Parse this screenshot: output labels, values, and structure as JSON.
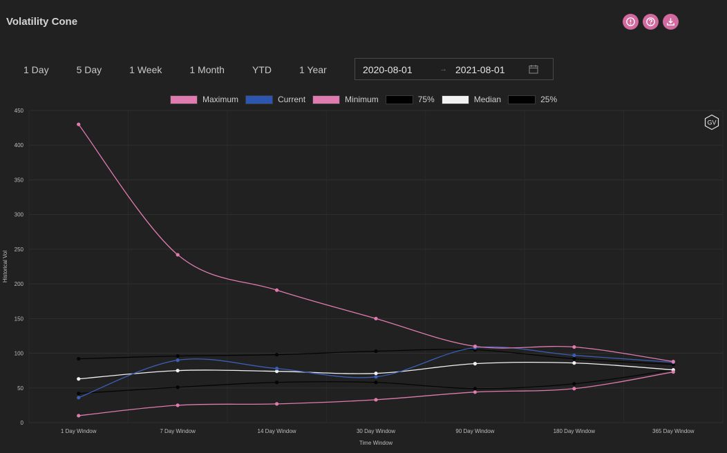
{
  "header": {
    "title": "Volatility Cone",
    "icons": [
      "info-icon",
      "help-icon",
      "download-icon"
    ],
    "accent_color": "#d26a9f"
  },
  "ranges": [
    {
      "label": "1 Day"
    },
    {
      "label": "5 Day"
    },
    {
      "label": "1 Week"
    },
    {
      "label": "1 Month"
    },
    {
      "label": "YTD"
    },
    {
      "label": "1 Year"
    }
  ],
  "date_range": {
    "start": "2020-08-01",
    "separator": "→",
    "end": "2021-08-01"
  },
  "badge": "GV",
  "chart_data": {
    "type": "line",
    "title": "",
    "xlabel": "Time Window",
    "ylabel": "Historical Vol",
    "ylim": [
      0,
      450
    ],
    "yticks": [
      0,
      50,
      100,
      150,
      200,
      250,
      300,
      350,
      400,
      450
    ],
    "grid": true,
    "legend_position": "top",
    "categories": [
      "1 Day Window",
      "7 Day Window",
      "14 Day Window",
      "30 Day Window",
      "90 Day Window",
      "180 Day Window",
      "365 Day Window"
    ],
    "series": [
      {
        "name": "Maximum",
        "color": "#e07bb0",
        "swatch": "#e07bb0",
        "values": [
          430,
          242,
          191,
          150,
          110,
          109,
          88
        ]
      },
      {
        "name": "Current",
        "color": "#3b5fb5",
        "swatch": "#2d56b0",
        "values": [
          36,
          90,
          78,
          66,
          108,
          97,
          87
        ]
      },
      {
        "name": "Minimum",
        "color": "#e07bb0",
        "swatch": "#e07bb0",
        "values": [
          10,
          25,
          27,
          33,
          44,
          49,
          73
        ]
      },
      {
        "name": "75%",
        "color": "#050505",
        "swatch": "#000000",
        "values": [
          92,
          96,
          98,
          103,
          105,
          92,
          84
        ]
      },
      {
        "name": "Median",
        "color": "#f2f2f2",
        "swatch": "#f2f2f2",
        "values": [
          63,
          75,
          74,
          71,
          85,
          86,
          76
        ]
      },
      {
        "name": "25%",
        "color": "#050505",
        "swatch": "#000000",
        "values": [
          42,
          51,
          58,
          58,
          49,
          56,
          76
        ]
      }
    ]
  }
}
